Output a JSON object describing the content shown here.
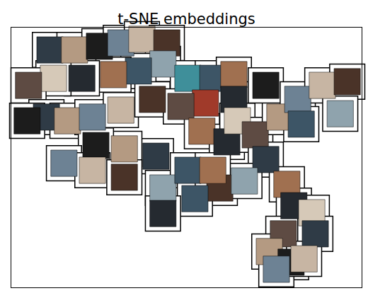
{
  "chart_data": {
    "type": "scatter",
    "title": "t-SNE embeddings",
    "marker": "square",
    "tick_labels": false,
    "xlim": [
      0,
      100
    ],
    "ylim": [
      0,
      100
    ],
    "xticks": [],
    "yticks": [],
    "x": [
      11.1,
      18.1,
      25.2,
      31.3,
      37.3,
      44.4,
      43.3,
      36.3,
      29.2,
      20.2,
      12.1,
      5.0,
      10.1,
      16.1,
      4.6,
      23.2,
      31.3,
      40.3,
      50.4,
      57.5,
      63.5,
      63.5,
      55.4,
      48.4,
      41.3,
      32.3,
      24.2,
      15.1,
      23.2,
      32.3,
      43.3,
      50.4,
      54.4,
      61.5,
      64.5,
      69.6,
      72.6,
      76.6,
      72.6,
      81.7,
      88.7,
      95.8,
      93.8,
      82.7,
      78.6,
      80.6,
      85.7,
      77.6,
      86.7,
      73.6,
      79.8,
      75.6,
      83.5,
      59.5,
      66.5,
      52.4,
      57.5,
      43.3
    ],
    "y": [
      91.3,
      91.3,
      92.7,
      94.0,
      95.4,
      94.0,
      85.9,
      83.2,
      81.8,
      80.4,
      80.4,
      77.7,
      65.5,
      64.1,
      64.1,
      65.5,
      68.2,
      72.3,
      80.4,
      80.4,
      81.8,
      72.3,
      70.9,
      69.6,
      50.5,
      53.3,
      54.6,
      47.8,
      45.1,
      42.4,
      38.3,
      45.1,
      60.1,
      56.0,
      64.1,
      58.7,
      49.2,
      65.5,
      77.7,
      72.3,
      77.7,
      79.1,
      66.8,
      62.8,
      39.7,
      31.5,
      28.8,
      20.7,
      20.7,
      13.9,
      9.8,
      7.1,
      11.1,
      38.3,
      41.0,
      34.2,
      45.1,
      28.5
    ],
    "colors": [
      "#2f3b46",
      "#b49a82",
      "#1c1c1c",
      "#6d8294",
      "#c7b5a3",
      "#4a3328",
      "#8fa3ad",
      "#3d5566",
      "#a07050",
      "#252a30",
      "#d6c9b8",
      "#5e4b43",
      "#2f3b46",
      "#b49a82",
      "#1c1c1c",
      "#6d8294",
      "#c7b5a3",
      "#4a3328",
      "#3f8f9a",
      "#3d5566",
      "#a07050",
      "#252a30",
      "#a03a2a",
      "#5e4b43",
      "#2f3b46",
      "#b49a82",
      "#1c1c1c",
      "#6d8294",
      "#c7b5a3",
      "#4a3328",
      "#8fa3ad",
      "#3d5566",
      "#a07050",
      "#252a30",
      "#d6c9b8",
      "#5e4b43",
      "#2f3b46",
      "#b49a82",
      "#1c1c1c",
      "#6d8294",
      "#c7b5a3",
      "#4a3328",
      "#8fa3ad",
      "#3d5566",
      "#a07050",
      "#252a30",
      "#d6c9b8",
      "#5e4b43",
      "#2f3b46",
      "#b49a82",
      "#1c1c1c",
      "#6d8294",
      "#c7b5a3",
      "#4a3328",
      "#8fa3ad",
      "#3d5566",
      "#a07050",
      "#252a30"
    ]
  }
}
